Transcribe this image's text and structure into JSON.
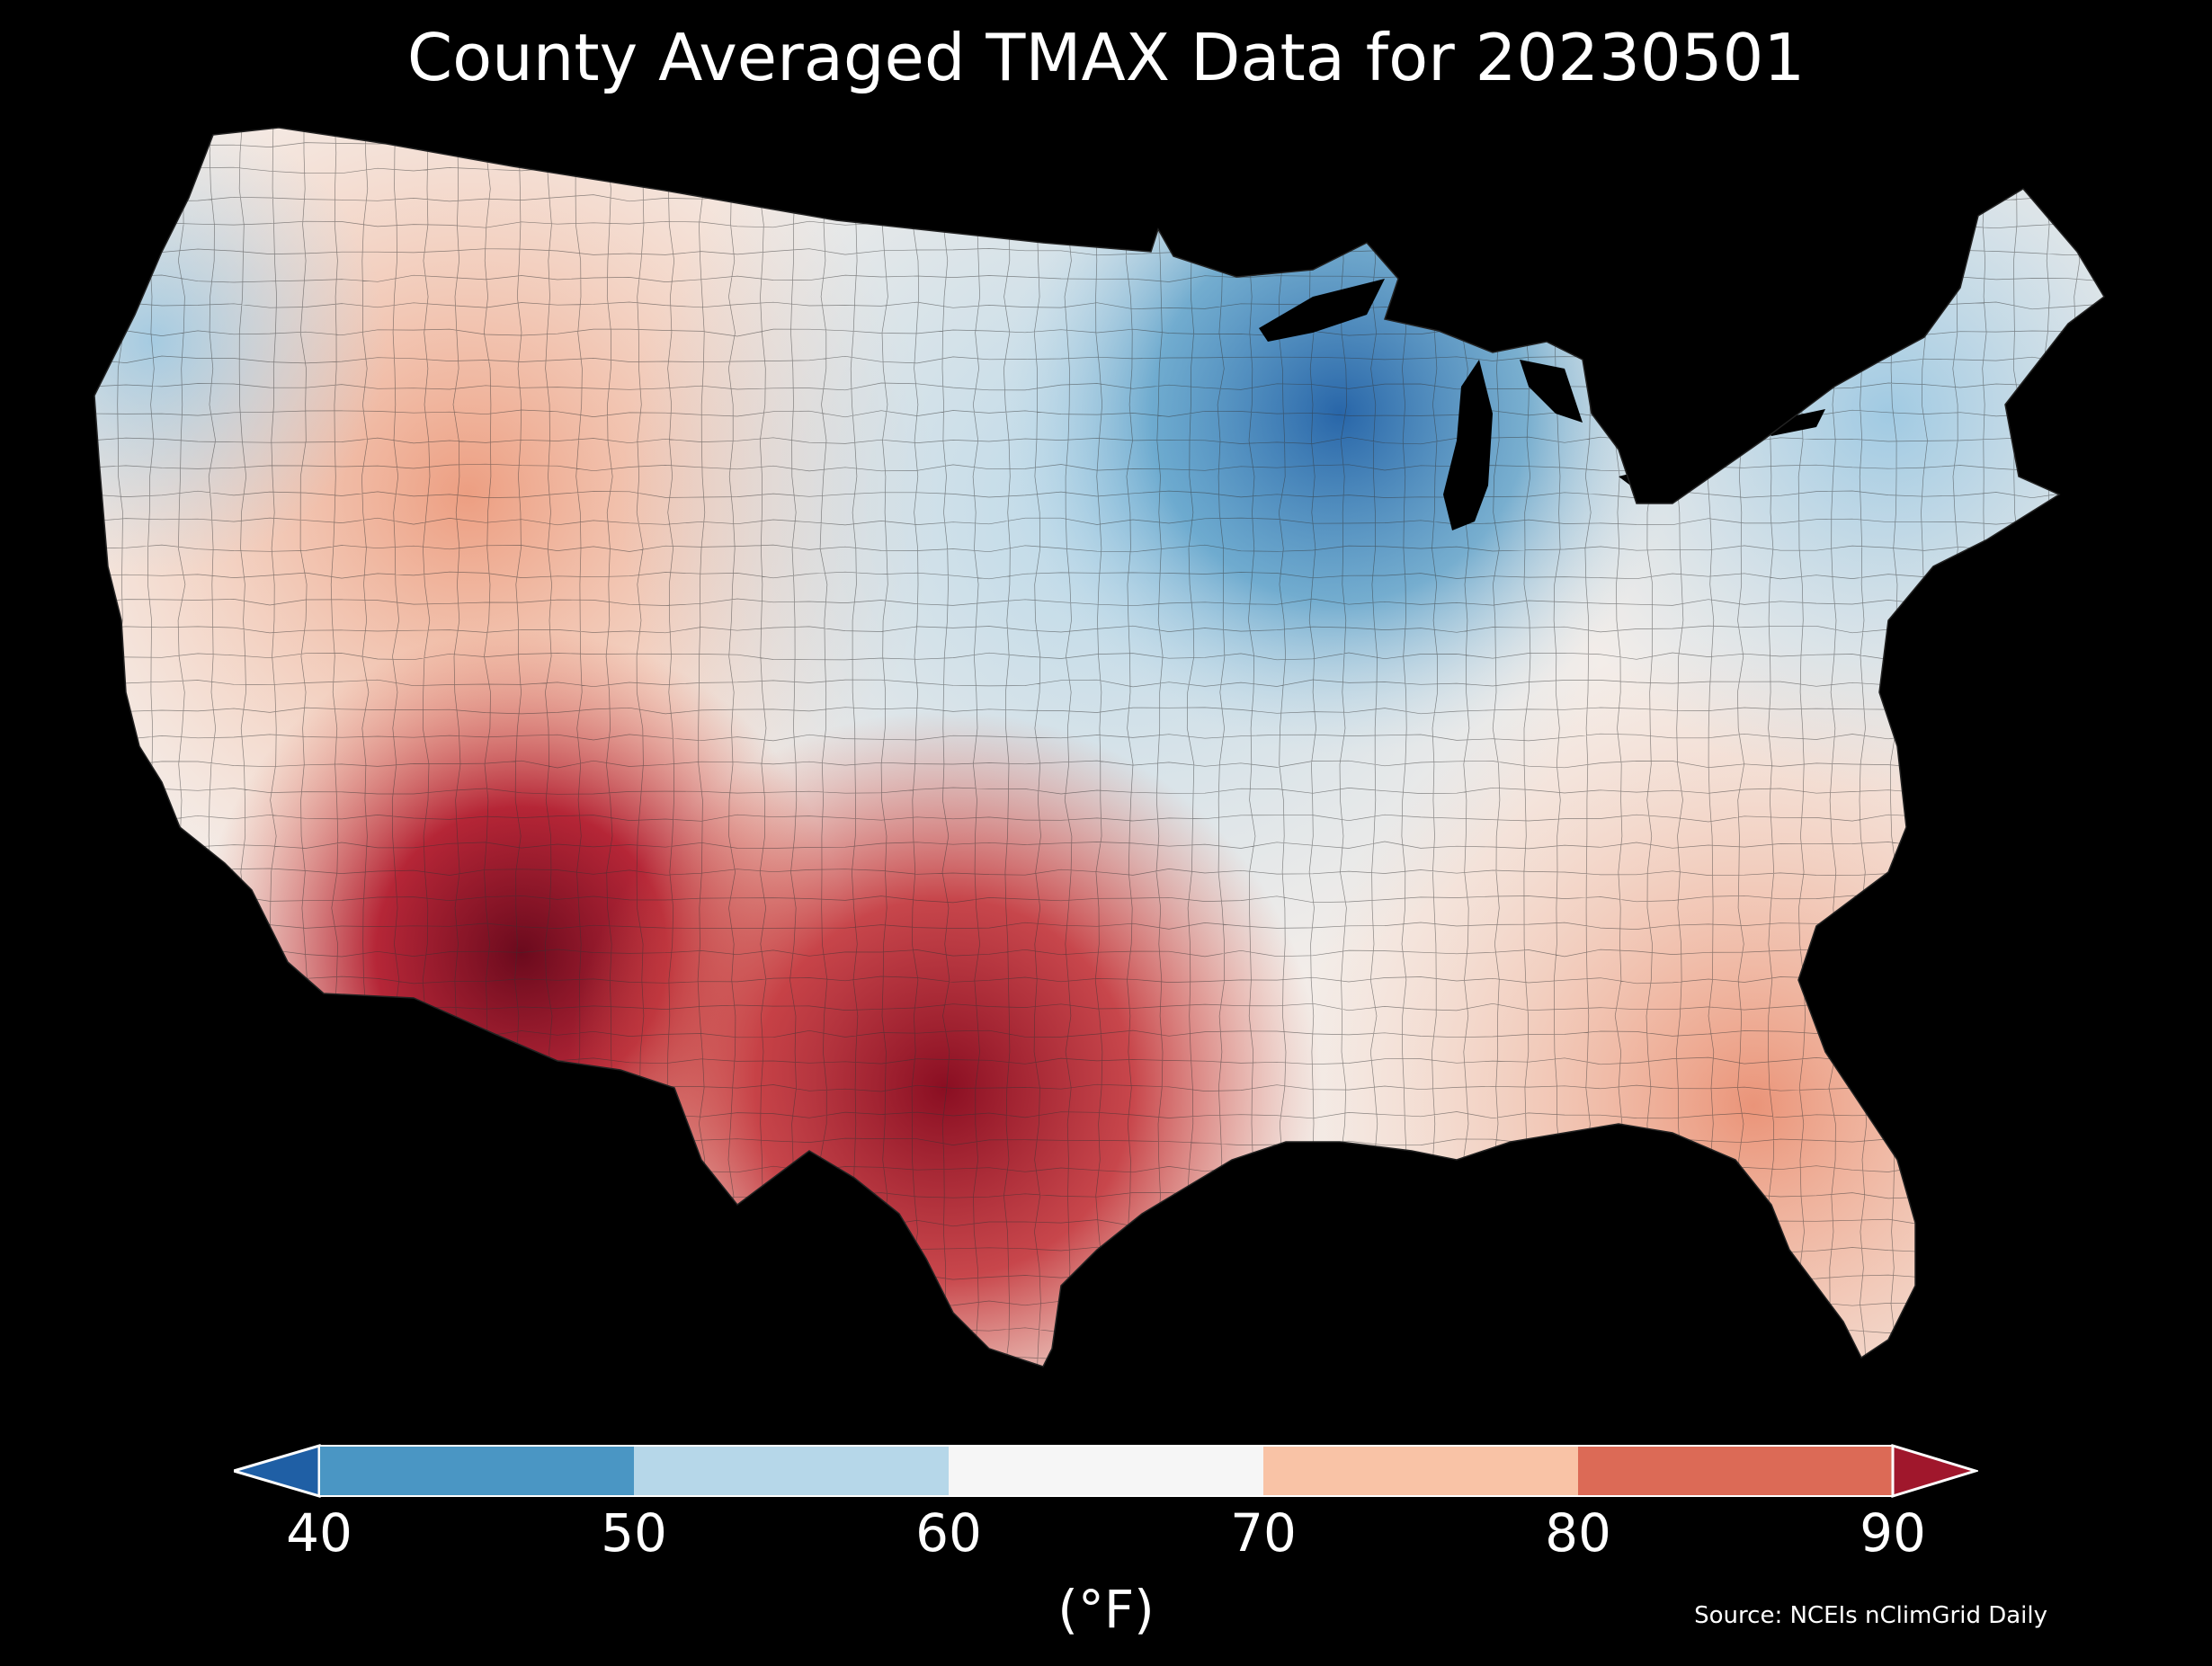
{
  "title": "County Averaged TMAX Data for 20230501",
  "colorbar": {
    "ticks": [
      "40",
      "50",
      "60",
      "70",
      "80",
      "90"
    ],
    "unit": "(°F)",
    "bin_colors": [
      "#4a96c4",
      "#b6d7e9",
      "#f6f6f6",
      "#f9c3a6",
      "#dc6a56"
    ],
    "under_color": "#1f5fa5",
    "over_color": "#a0172c"
  },
  "source": "Source: NCEIs nClimGrid Daily",
  "map_palette": {
    "cold_deep": "#1f5fa5",
    "cold": "#4a96c4",
    "cool": "#b6d7e9",
    "neutral": "#f6f6f6",
    "warm": "#f9c3a6",
    "hot": "#dc6a56",
    "very_hot": "#b21c2e",
    "extreme": "#6b0a1d"
  }
}
